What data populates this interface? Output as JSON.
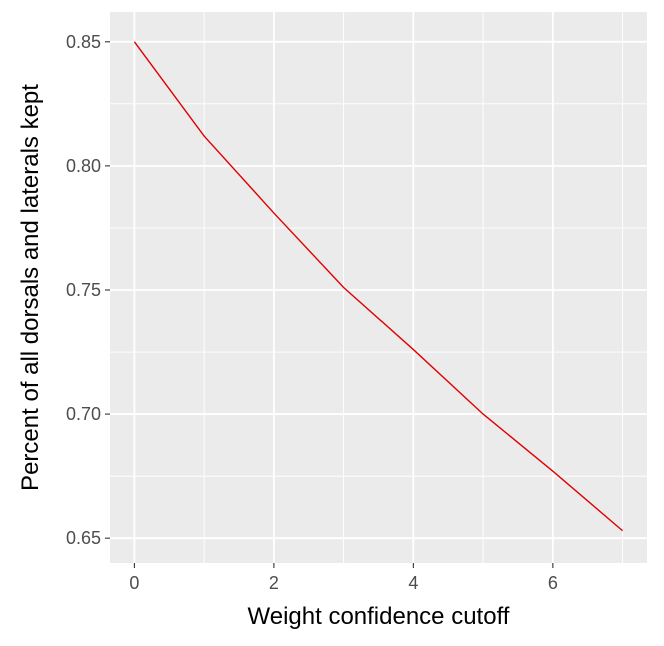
{
  "chart_data": {
    "type": "line",
    "title": "",
    "xlabel": "Weight confidence cutoff",
    "ylabel": "Percent of all dorsals and laterals kept",
    "x": [
      0,
      1,
      2,
      3,
      4,
      5,
      6,
      7
    ],
    "series": [
      {
        "values": [
          0.85,
          0.812,
          0.781,
          0.751,
          0.726,
          0.7,
          0.677,
          0.653
        ],
        "color": "#e00000"
      }
    ],
    "xlim": [
      -0.35,
      7.35
    ],
    "ylim": [
      0.64,
      0.862
    ],
    "xticks": [
      0,
      2,
      4,
      6
    ],
    "xtick_labels": [
      "0",
      "2",
      "4",
      "6"
    ],
    "yticks": [
      0.65,
      0.7,
      0.75,
      0.8,
      0.85
    ],
    "ytick_labels": [
      "0.65",
      "0.70",
      "0.75",
      "0.80",
      "0.85"
    ],
    "grid": true,
    "legend": "none",
    "panel_color": "#ebebeb",
    "grid_color": "#ffffff"
  }
}
